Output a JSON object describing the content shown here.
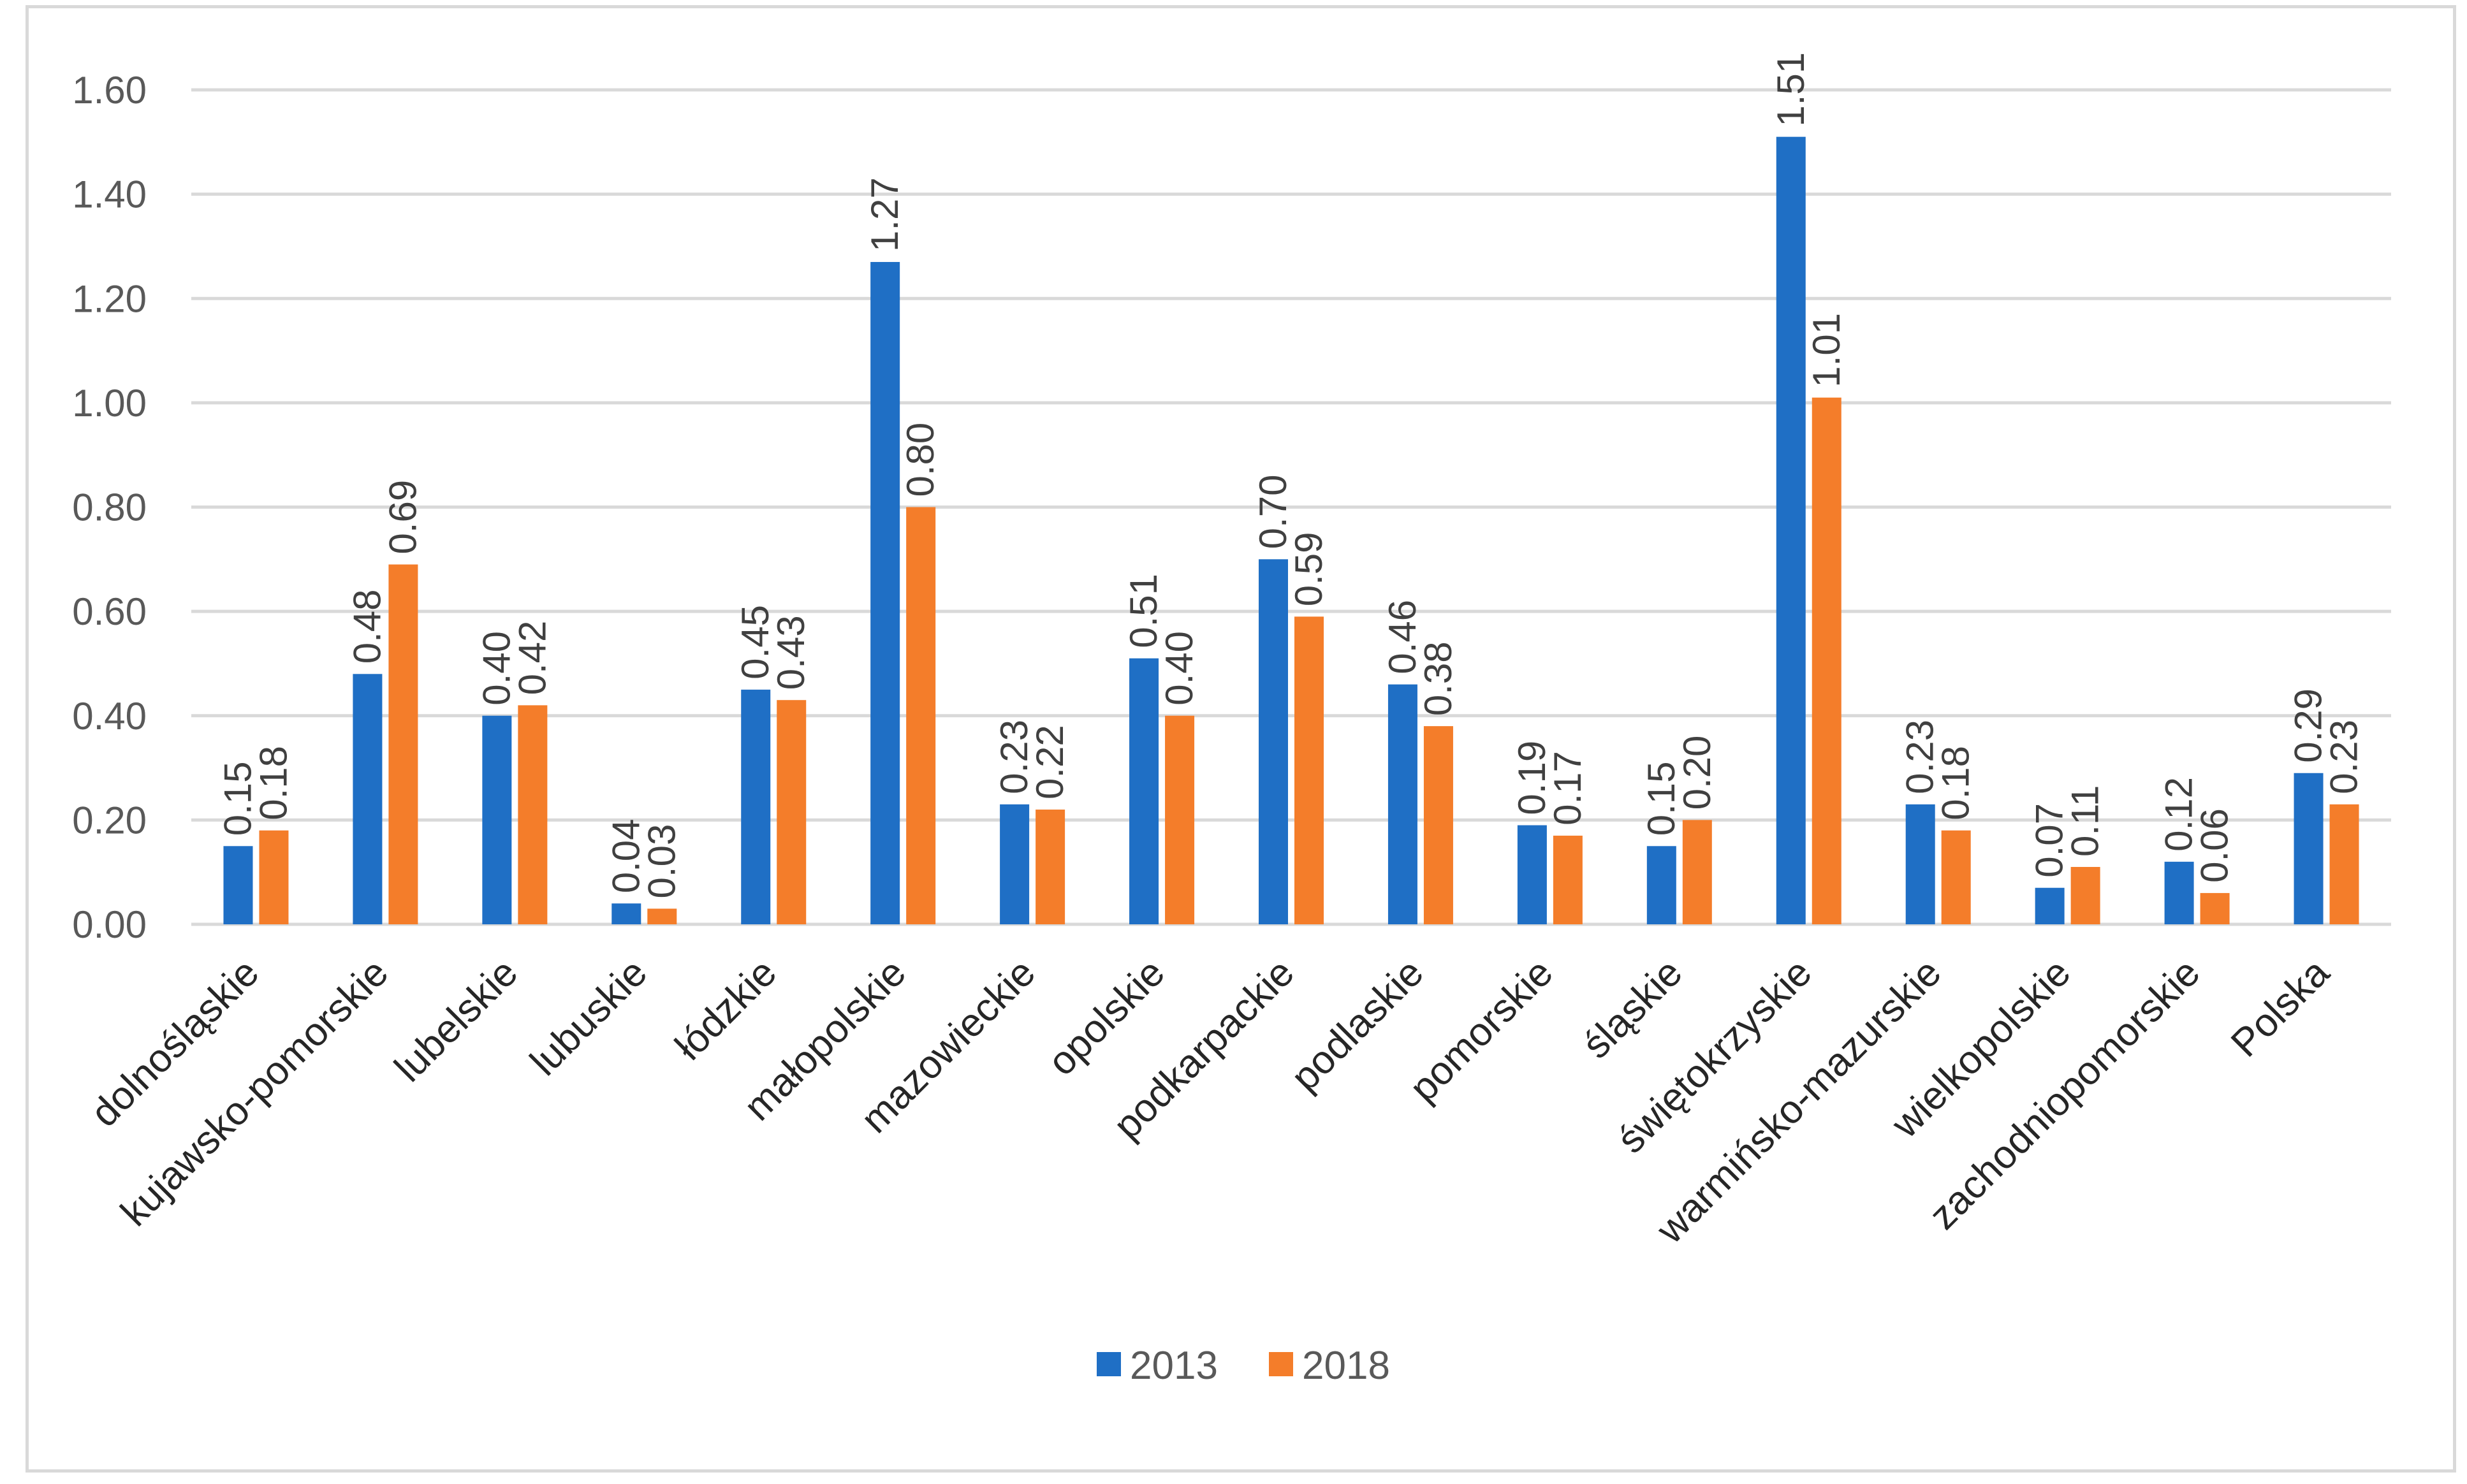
{
  "chart_data": {
    "type": "bar",
    "title": "",
    "xlabel": "",
    "ylabel": "",
    "ylim": [
      0,
      1.6
    ],
    "y_ticks": [
      "0.00",
      "0.20",
      "0.40",
      "0.60",
      "0.80",
      "1.00",
      "1.20",
      "1.40",
      "1.60"
    ],
    "grid": true,
    "legend_position": "bottom",
    "categories": [
      "dolnośląskie",
      "kujawsko-pomorskie",
      "lubelskie",
      "lubuskie",
      "łódzkie",
      "małopolskie",
      "mazowieckie",
      "opolskie",
      "podkarpackie",
      "podlaskie",
      "pomorskie",
      "śląskie",
      "świętokrzyskie",
      "warmińsko-mazurskie",
      "wielkopolskie",
      "zachodniopomorskie",
      "Polska"
    ],
    "series": [
      {
        "name": "2013",
        "color": "#1f6fc5",
        "values": [
          0.15,
          0.48,
          0.4,
          0.04,
          0.45,
          1.27,
          0.23,
          0.51,
          0.7,
          0.46,
          0.19,
          0.15,
          1.51,
          0.23,
          0.07,
          0.12,
          0.29
        ]
      },
      {
        "name": "2018",
        "color": "#f47d2a",
        "values": [
          0.18,
          0.69,
          0.42,
          0.03,
          0.43,
          0.8,
          0.22,
          0.4,
          0.59,
          0.38,
          0.17,
          0.2,
          1.01,
          0.18,
          0.11,
          0.06,
          0.23
        ]
      }
    ]
  }
}
